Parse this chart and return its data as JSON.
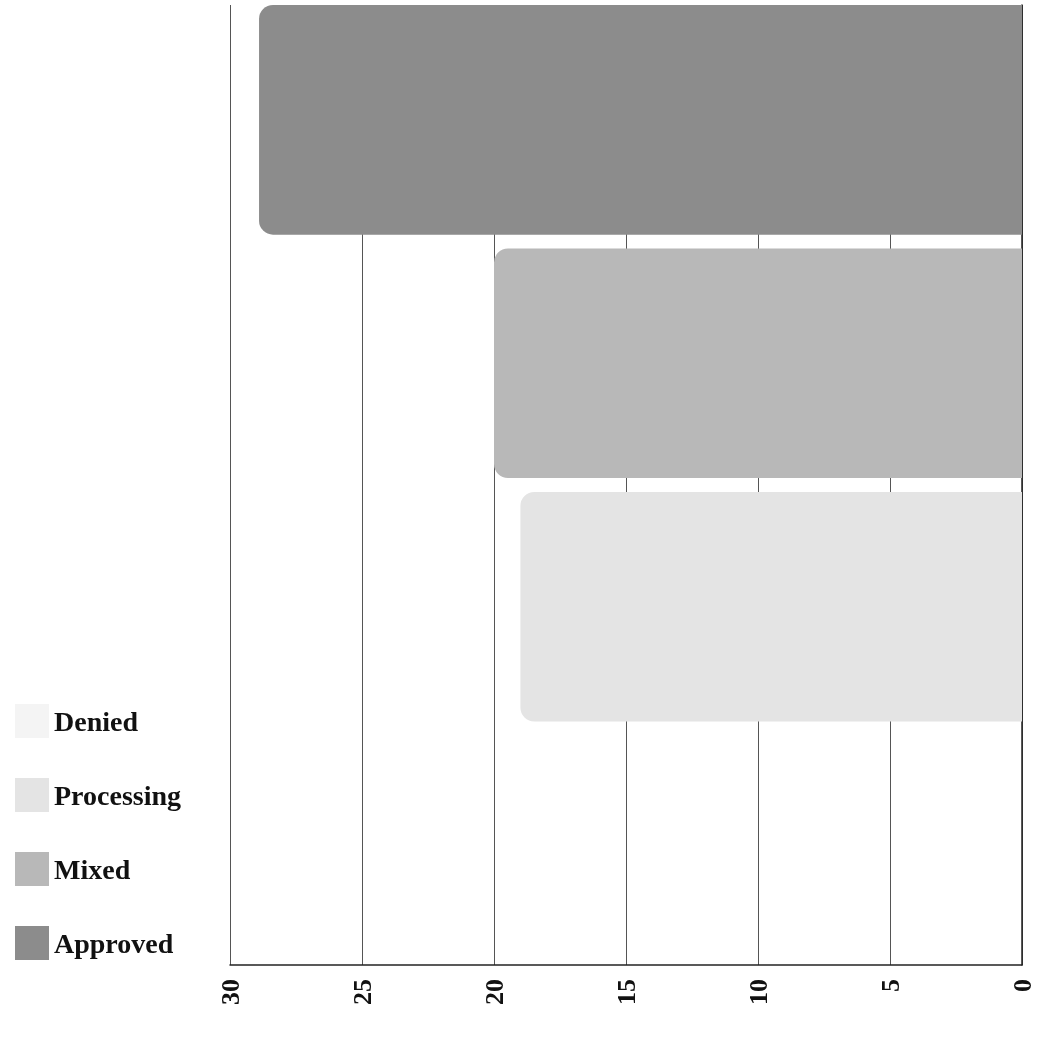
{
  "chart_data": {
    "type": "bar",
    "orientation": "horizontal",
    "categories": [
      null
    ],
    "series": [
      {
        "name": "Approved",
        "color": "#8c8c8c",
        "values": [
          28.9
        ]
      },
      {
        "name": "Mixed",
        "color": "#b8b8b8",
        "values": [
          20
        ]
      },
      {
        "name": "Processing",
        "color": "#e4e4e4",
        "values": [
          19
        ]
      },
      {
        "name": "Denied",
        "color": "#f4f4f4",
        "values": [
          0
        ]
      }
    ],
    "xlim": [
      30,
      0
    ],
    "xticks": [
      30,
      25,
      20,
      15,
      10,
      5,
      0
    ],
    "grid": "x",
    "legend": "bottom left"
  }
}
